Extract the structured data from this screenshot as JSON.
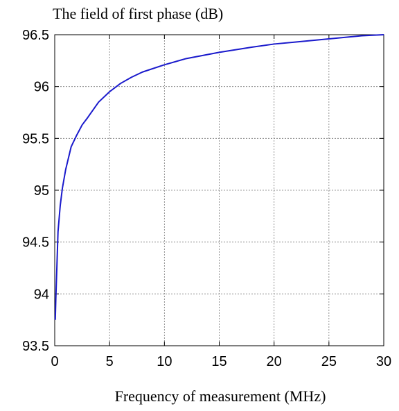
{
  "chart_data": {
    "type": "line",
    "title": "",
    "ylabel": "The field of  first phase (dB)",
    "xlabel": "Frequency of measurement (MHz)",
    "xlim": [
      0,
      30
    ],
    "ylim": [
      93.5,
      96.5
    ],
    "x_ticks": [
      "0",
      "5",
      "10",
      "15",
      "20",
      "25",
      "30"
    ],
    "y_ticks": [
      "93.5",
      "94",
      "94.5",
      "95",
      "95.5",
      "96",
      "96.5"
    ],
    "grid": true,
    "series": [
      {
        "color": "#1a1acc",
        "x": [
          0.05,
          0.1,
          0.2,
          0.3,
          0.5,
          0.7,
          1.0,
          1.5,
          2.0,
          2.5,
          3.0,
          4.0,
          5.0,
          6.0,
          7.0,
          8.0,
          10.0,
          12.0,
          15.0,
          18.0,
          20.0,
          22.0,
          25.0,
          28.0,
          30.0
        ],
        "y": [
          93.75,
          93.95,
          94.27,
          94.6,
          94.85,
          95.02,
          95.2,
          95.42,
          95.53,
          95.63,
          95.7,
          95.85,
          95.95,
          96.03,
          96.09,
          96.14,
          96.21,
          96.27,
          96.33,
          96.38,
          96.41,
          96.43,
          96.46,
          96.49,
          96.5
        ]
      }
    ]
  }
}
